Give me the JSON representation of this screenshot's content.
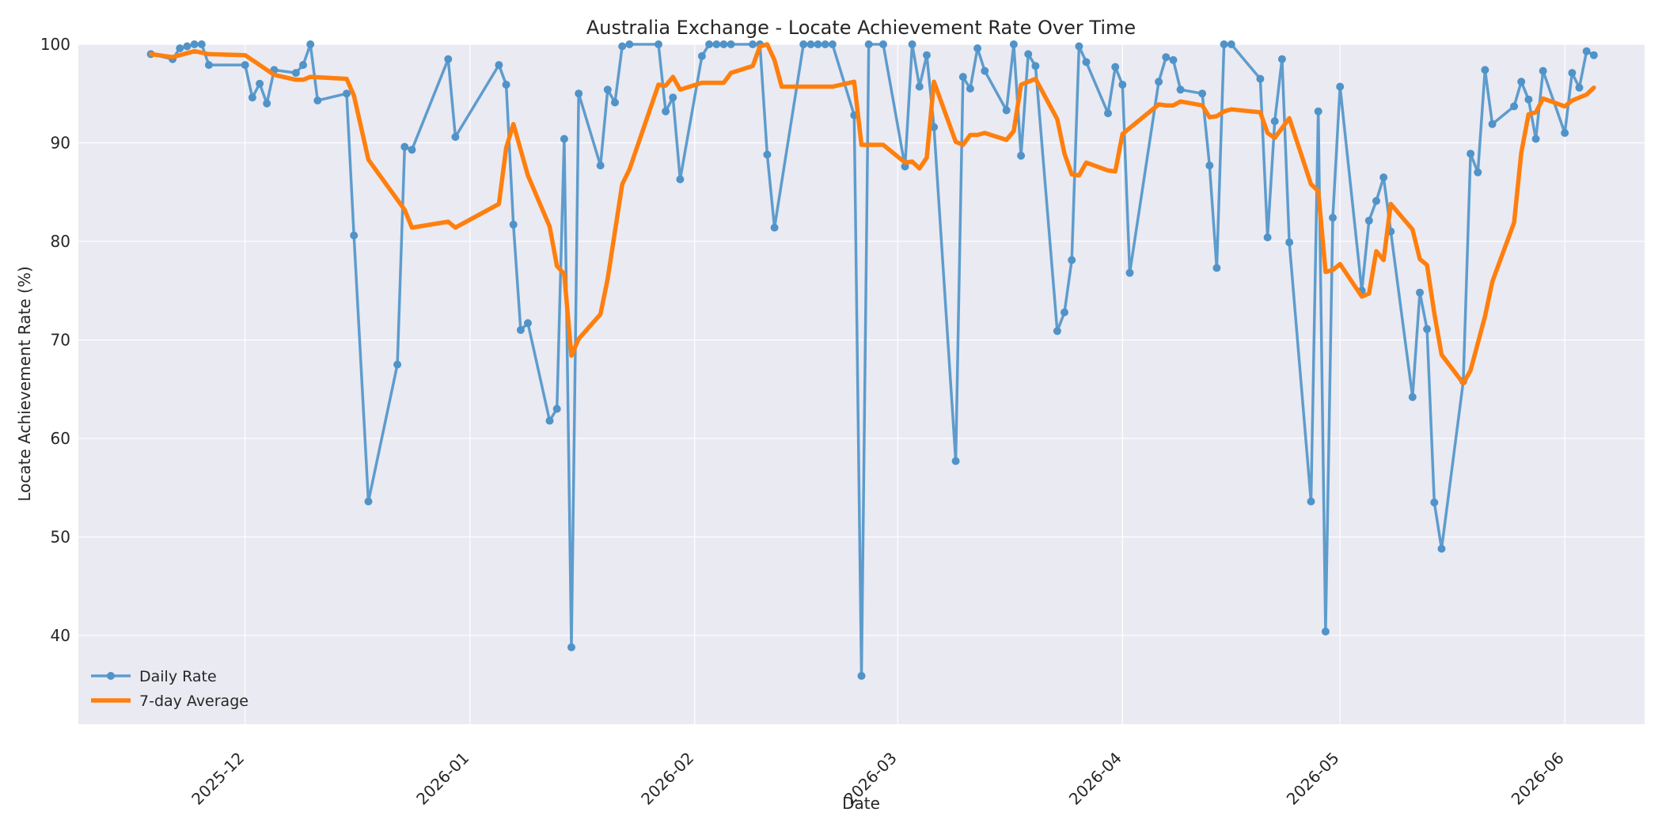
{
  "chart_data": {
    "type": "line",
    "title": "Australia Exchange - Locate Achievement Rate Over Time",
    "xlabel": "Date",
    "ylabel": "Locate Achievement Rate (%)",
    "ylim": [
      31,
      100
    ],
    "xlim": [
      "2025-11-08",
      "2026-06-12"
    ],
    "x_ticks": [
      "2025-12",
      "2026-01",
      "2026-02",
      "2026-03",
      "2026-04",
      "2026-05",
      "2026-06"
    ],
    "y_ticks": [
      40,
      50,
      60,
      70,
      80,
      90,
      100
    ],
    "grid": true,
    "legend_position": "lower-left",
    "series": [
      {
        "name": "Daily Rate",
        "color": "#4f93c9",
        "markers": true,
        "points": [
          [
            "2025-11-18",
            99.0
          ],
          [
            "2025-11-21",
            98.5
          ],
          [
            "2025-11-22",
            99.6
          ],
          [
            "2025-11-23",
            99.8
          ],
          [
            "2025-11-24",
            100.0
          ],
          [
            "2025-11-25",
            100.0
          ],
          [
            "2025-11-26",
            97.9
          ],
          [
            "2025-12-01",
            97.9
          ],
          [
            "2025-12-02",
            94.6
          ],
          [
            "2025-12-03",
            96.0
          ],
          [
            "2025-12-04",
            94.0
          ],
          [
            "2025-12-05",
            97.4
          ],
          [
            "2025-12-08",
            97.1
          ],
          [
            "2025-12-09",
            97.9
          ],
          [
            "2025-12-10",
            100.0
          ],
          [
            "2025-12-11",
            94.3
          ],
          [
            "2025-12-15",
            95.0
          ],
          [
            "2025-12-16",
            80.6
          ],
          [
            "2025-12-18",
            53.6
          ],
          [
            "2025-12-22",
            67.5
          ],
          [
            "2025-12-23",
            89.6
          ],
          [
            "2025-12-24",
            89.3
          ],
          [
            "2025-12-29",
            98.5
          ],
          [
            "2025-12-30",
            90.6
          ],
          [
            "2026-01-05",
            97.9
          ],
          [
            "2026-01-06",
            95.9
          ],
          [
            "2026-01-07",
            81.7
          ],
          [
            "2026-01-08",
            71.0
          ],
          [
            "2026-01-09",
            71.7
          ],
          [
            "2026-01-12",
            61.8
          ],
          [
            "2026-01-13",
            63.0
          ],
          [
            "2026-01-14",
            90.4
          ],
          [
            "2026-01-15",
            38.8
          ],
          [
            "2026-01-16",
            95.0
          ],
          [
            "2026-01-19",
            87.7
          ],
          [
            "2026-01-20",
            95.4
          ],
          [
            "2026-01-21",
            94.1
          ],
          [
            "2026-01-22",
            99.8
          ],
          [
            "2026-01-23",
            100.0
          ],
          [
            "2026-01-27",
            100.0
          ],
          [
            "2026-01-28",
            93.2
          ],
          [
            "2026-01-29",
            94.6
          ],
          [
            "2026-01-30",
            86.3
          ],
          [
            "2026-02-02",
            98.8
          ],
          [
            "2026-02-03",
            100.0
          ],
          [
            "2026-02-04",
            100.0
          ],
          [
            "2026-02-05",
            100.0
          ],
          [
            "2026-02-06",
            100.0
          ],
          [
            "2026-02-09",
            100.0
          ],
          [
            "2026-02-10",
            100.0
          ],
          [
            "2026-02-11",
            88.8
          ],
          [
            "2026-02-12",
            81.4
          ],
          [
            "2026-02-16",
            100.0
          ],
          [
            "2026-02-17",
            100.0
          ],
          [
            "2026-02-18",
            100.0
          ],
          [
            "2026-02-19",
            100.0
          ],
          [
            "2026-02-20",
            100.0
          ],
          [
            "2026-02-23",
            92.8
          ],
          [
            "2026-02-24",
            35.9
          ],
          [
            "2026-02-25",
            100.0
          ],
          [
            "2026-02-27",
            100.0
          ],
          [
            "2026-03-02",
            87.6
          ],
          [
            "2026-03-03",
            100.0
          ],
          [
            "2026-03-04",
            95.7
          ],
          [
            "2026-03-05",
            98.9
          ],
          [
            "2026-03-06",
            91.6
          ],
          [
            "2026-03-09",
            57.7
          ],
          [
            "2026-03-10",
            96.7
          ],
          [
            "2026-03-11",
            95.5
          ],
          [
            "2026-03-12",
            99.6
          ],
          [
            "2026-03-13",
            97.3
          ],
          [
            "2026-03-16",
            93.3
          ],
          [
            "2026-03-17",
            100.0
          ],
          [
            "2026-03-18",
            88.7
          ],
          [
            "2026-03-19",
            99.0
          ],
          [
            "2026-03-20",
            97.8
          ],
          [
            "2026-03-23",
            70.9
          ],
          [
            "2026-03-24",
            72.8
          ],
          [
            "2026-03-25",
            78.1
          ],
          [
            "2026-03-26",
            99.8
          ],
          [
            "2026-03-27",
            98.2
          ],
          [
            "2026-03-30",
            93.0
          ],
          [
            "2026-03-31",
            97.7
          ],
          [
            "2026-04-01",
            95.9
          ],
          [
            "2026-04-02",
            76.8
          ],
          [
            "2026-04-06",
            96.2
          ],
          [
            "2026-04-07",
            98.7
          ],
          [
            "2026-04-08",
            98.4
          ],
          [
            "2026-04-09",
            95.4
          ],
          [
            "2026-04-12",
            95.0
          ],
          [
            "2026-04-13",
            87.7
          ],
          [
            "2026-04-14",
            77.3
          ],
          [
            "2026-04-15",
            100.0
          ],
          [
            "2026-04-16",
            100.0
          ],
          [
            "2026-04-20",
            96.5
          ],
          [
            "2026-04-21",
            80.4
          ],
          [
            "2026-04-22",
            92.2
          ],
          [
            "2026-04-23",
            98.5
          ],
          [
            "2026-04-24",
            79.9
          ],
          [
            "2026-04-27",
            53.6
          ],
          [
            "2026-04-28",
            93.2
          ],
          [
            "2026-04-29",
            40.4
          ],
          [
            "2026-04-30",
            82.4
          ],
          [
            "2026-05-01",
            95.7
          ],
          [
            "2026-05-04",
            75.0
          ],
          [
            "2026-05-05",
            82.1
          ],
          [
            "2026-05-06",
            84.1
          ],
          [
            "2026-05-07",
            86.5
          ],
          [
            "2026-05-08",
            81.0
          ],
          [
            "2026-05-11",
            64.2
          ],
          [
            "2026-05-12",
            74.8
          ],
          [
            "2026-05-13",
            71.1
          ],
          [
            "2026-05-14",
            53.5
          ],
          [
            "2026-05-15",
            48.8
          ],
          [
            "2026-05-18",
            65.8
          ],
          [
            "2026-05-19",
            88.9
          ],
          [
            "2026-05-20",
            87.0
          ],
          [
            "2026-05-21",
            97.4
          ],
          [
            "2026-05-22",
            91.9
          ],
          [
            "2026-05-25",
            93.7
          ],
          [
            "2026-05-26",
            96.2
          ],
          [
            "2026-05-27",
            94.4
          ],
          [
            "2026-05-28",
            90.4
          ],
          [
            "2026-05-29",
            97.3
          ],
          [
            "2026-06-01",
            91.0
          ],
          [
            "2026-06-02",
            97.1
          ],
          [
            "2026-06-03",
            95.6
          ],
          [
            "2026-06-04",
            99.3
          ],
          [
            "2026-06-05",
            98.9
          ]
        ]
      },
      {
        "name": "7-day Average",
        "color": "#ff7f0e",
        "markers": false,
        "points": [
          [
            "2025-11-18",
            99.0
          ],
          [
            "2025-11-21",
            98.7
          ],
          [
            "2025-11-24",
            99.3
          ],
          [
            "2025-11-26",
            99.0
          ],
          [
            "2025-12-01",
            98.9
          ],
          [
            "2025-12-03",
            97.9
          ],
          [
            "2025-12-05",
            96.9
          ],
          [
            "2025-12-08",
            96.4
          ],
          [
            "2025-12-09",
            96.4
          ],
          [
            "2025-12-10",
            96.7
          ],
          [
            "2025-12-15",
            96.5
          ],
          [
            "2025-12-16",
            94.8
          ],
          [
            "2025-12-18",
            88.3
          ],
          [
            "2025-12-23",
            83.2
          ],
          [
            "2025-12-24",
            81.4
          ],
          [
            "2025-12-29",
            82.0
          ],
          [
            "2025-12-30",
            81.4
          ],
          [
            "2026-01-05",
            83.8
          ],
          [
            "2026-01-06",
            89.5
          ],
          [
            "2026-01-07",
            91.9
          ],
          [
            "2026-01-09",
            86.7
          ],
          [
            "2026-01-12",
            81.5
          ],
          [
            "2026-01-13",
            77.5
          ],
          [
            "2026-01-14",
            76.7
          ],
          [
            "2026-01-15",
            68.4
          ],
          [
            "2026-01-16",
            70.1
          ],
          [
            "2026-01-19",
            72.6
          ],
          [
            "2026-01-20",
            76.2
          ],
          [
            "2026-01-22",
            85.8
          ],
          [
            "2026-01-23",
            87.3
          ],
          [
            "2026-01-27",
            95.9
          ],
          [
            "2026-01-28",
            95.8
          ],
          [
            "2026-01-29",
            96.7
          ],
          [
            "2026-01-30",
            95.4
          ],
          [
            "2026-02-02",
            96.1
          ],
          [
            "2026-02-05",
            96.1
          ],
          [
            "2026-02-06",
            97.1
          ],
          [
            "2026-02-09",
            97.8
          ],
          [
            "2026-02-10",
            99.8
          ],
          [
            "2026-02-11",
            100.0
          ],
          [
            "2026-02-12",
            98.4
          ],
          [
            "2026-02-13",
            95.7
          ],
          [
            "2026-02-20",
            95.7
          ],
          [
            "2026-02-23",
            96.2
          ],
          [
            "2026-02-24",
            89.8
          ],
          [
            "2026-02-27",
            89.8
          ],
          [
            "2026-03-02",
            88.0
          ],
          [
            "2026-03-03",
            88.1
          ],
          [
            "2026-03-04",
            87.4
          ],
          [
            "2026-03-05",
            88.5
          ],
          [
            "2026-03-06",
            96.2
          ],
          [
            "2026-03-09",
            90.1
          ],
          [
            "2026-03-10",
            89.8
          ],
          [
            "2026-03-11",
            90.8
          ],
          [
            "2026-03-12",
            90.8
          ],
          [
            "2026-03-13",
            91.0
          ],
          [
            "2026-03-16",
            90.3
          ],
          [
            "2026-03-17",
            91.2
          ],
          [
            "2026-03-18",
            95.9
          ],
          [
            "2026-03-20",
            96.5
          ],
          [
            "2026-03-23",
            92.4
          ],
          [
            "2026-03-24",
            88.9
          ],
          [
            "2026-03-25",
            86.8
          ],
          [
            "2026-03-26",
            86.7
          ],
          [
            "2026-03-27",
            88.0
          ],
          [
            "2026-03-30",
            87.2
          ],
          [
            "2026-03-31",
            87.1
          ],
          [
            "2026-04-01",
            90.9
          ],
          [
            "2026-04-06",
            93.9
          ],
          [
            "2026-04-07",
            93.8
          ],
          [
            "2026-04-08",
            93.8
          ],
          [
            "2026-04-09",
            94.2
          ],
          [
            "2026-04-12",
            93.8
          ],
          [
            "2026-04-13",
            92.6
          ],
          [
            "2026-04-14",
            92.7
          ],
          [
            "2026-04-15",
            93.2
          ],
          [
            "2026-04-16",
            93.4
          ],
          [
            "2026-04-20",
            93.1
          ],
          [
            "2026-04-21",
            91.0
          ],
          [
            "2026-04-22",
            90.5
          ],
          [
            "2026-04-24",
            92.5
          ],
          [
            "2026-04-27",
            85.8
          ],
          [
            "2026-04-28",
            85.1
          ],
          [
            "2026-04-29",
            76.9
          ],
          [
            "2026-04-30",
            77.1
          ],
          [
            "2026-05-01",
            77.7
          ],
          [
            "2026-05-04",
            74.4
          ],
          [
            "2026-05-05",
            74.7
          ],
          [
            "2026-05-06",
            79.0
          ],
          [
            "2026-05-07",
            78.1
          ],
          [
            "2026-05-08",
            83.8
          ],
          [
            "2026-05-11",
            81.2
          ],
          [
            "2026-05-12",
            78.2
          ],
          [
            "2026-05-13",
            77.6
          ],
          [
            "2026-05-14",
            72.7
          ],
          [
            "2026-05-15",
            68.5
          ],
          [
            "2026-05-18",
            65.6
          ],
          [
            "2026-05-19",
            66.9
          ],
          [
            "2026-05-21",
            72.4
          ],
          [
            "2026-05-22",
            75.9
          ],
          [
            "2026-05-25",
            81.9
          ],
          [
            "2026-05-26",
            89.0
          ],
          [
            "2026-05-27",
            92.9
          ],
          [
            "2026-05-28",
            93.1
          ],
          [
            "2026-05-29",
            94.5
          ],
          [
            "2026-06-01",
            93.7
          ],
          [
            "2026-06-02",
            94.3
          ],
          [
            "2026-06-04",
            94.9
          ],
          [
            "2026-06-05",
            95.6
          ]
        ]
      }
    ]
  }
}
